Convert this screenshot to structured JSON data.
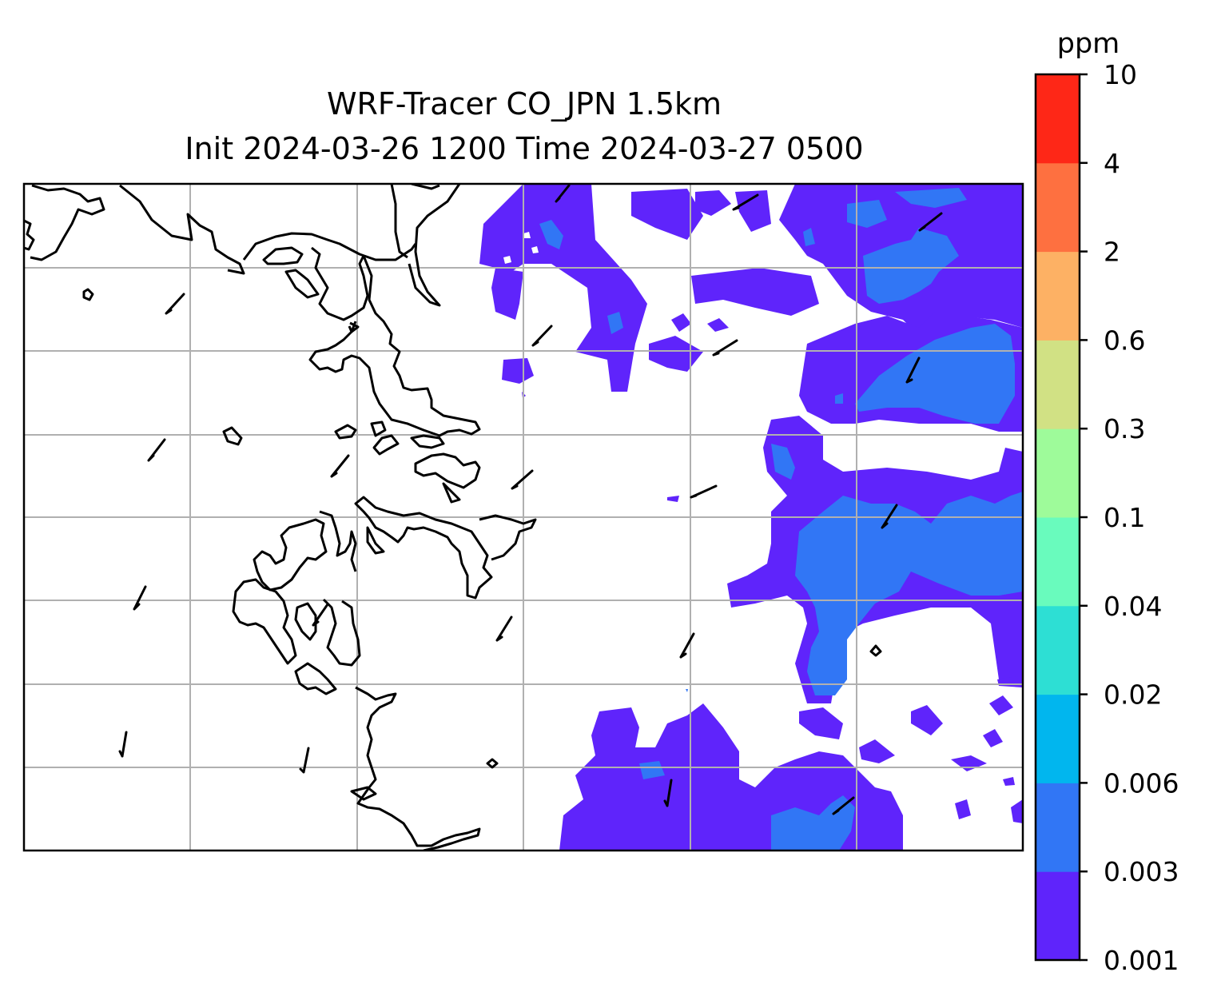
{
  "figure": {
    "title_line_1": "WRF-Tracer CO_JPN 1.5km",
    "title_line_2": "Init 2024-03-26 1200 Time 2024-03-27 0500"
  },
  "colorbar": {
    "unit": "ppm",
    "levels": [
      "0.001",
      "0.003",
      "0.006",
      "0.02",
      "0.04",
      "0.1",
      "0.3",
      "0.6",
      "2",
      "4",
      "10"
    ],
    "colors": [
      "#5f24fb",
      "#3176f5",
      "#01b6ee",
      "#2ddfd4",
      "#69fbbd",
      "#9efb9a",
      "#d1e184",
      "#fdb164",
      "#fe7040",
      "#fe2717"
    ]
  },
  "map_styles": {
    "coastline_color": "#000000",
    "gridline_color": "#b0b0b0",
    "wind_barb_color": "#000000",
    "background": "#ffffff"
  }
}
